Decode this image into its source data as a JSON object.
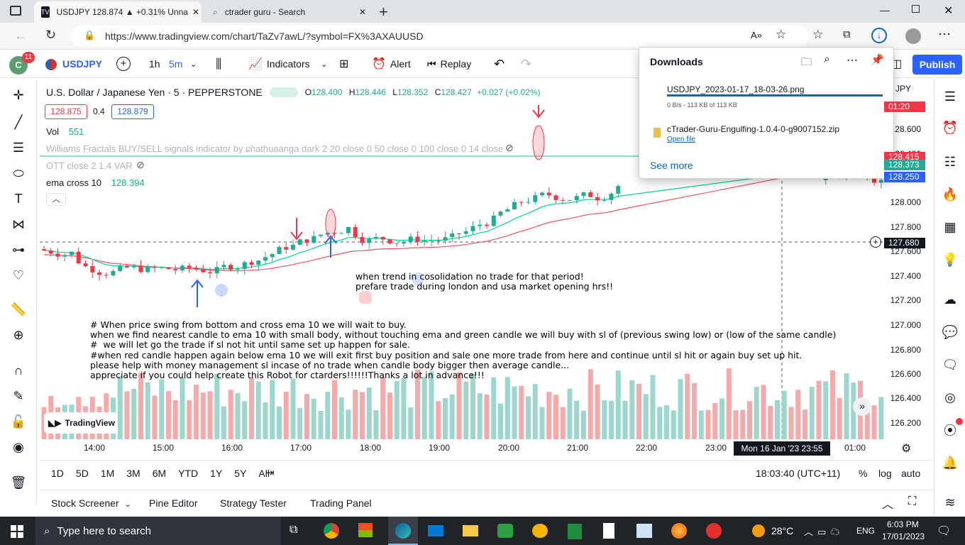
{
  "browser": {
    "tabs": [
      {
        "label": "USDJPY 128.874 ▲ +0.31% Unna"
      },
      {
        "label": "ctrader guru - Search"
      }
    ],
    "url": "https://www.tradingview.com/chart/TaZv7awL/?symbol=FX%3AXAUUSD"
  },
  "toolbar": {
    "notif_count": "11",
    "symbol": "USDJPY",
    "interval_1h": "1h",
    "interval_5m": "5m",
    "indicators": "Indicators",
    "alert": "Alert",
    "replay": "Replay",
    "publish": "Publish"
  },
  "legend": {
    "title": "U.S. Dollar / Japanese Yen · 5 · PEPPERSTONE",
    "o_label": "O",
    "o": "128.400",
    "h_label": "H",
    "h": "128.446",
    "l_label": "L",
    "l": "128.352",
    "c_label": "C",
    "c": "128.427",
    "change": "+0.027 (+0.02%)",
    "bid": "128.875",
    "spread": "0.4",
    "ask": "128.879",
    "vol_label": "Vol",
    "vol": "551",
    "williams": "Williams Fractals BUY/SELL signals indicator by ɕhathuaanga dark 2 20 close 0 50 close 0 100 close 0 14 close",
    "ott": "OTT close 2 1.4 VAR",
    "ema_label": "ema cross 10",
    "ema": "128.394"
  },
  "notes": {
    "trend": "when trend in cosolidation no trade for that period!\nprefare trade during london and usa market opening hrs!!",
    "strategy": "# When price swing from bottom and cross ema 10 we will wait to buy.\nwhen we find nearest candle to ema 10 with small body, without touching ema and green candle we will buy with sl of (previous swing low) or (low of the same candle)\n#  we will let go the trade if sl not hit until same set up happen for sale.\n#when red candle happen again below ema 10 we will exit first buy position and sale one more trade from here and continue until sl hit or again buy set up hit.\nplease help with money management sl incase of no trade when candle body bigger then average candle...\nappreciate if you could help create this Robot for ctarders!!!!!!Thanks a lot in advance!!!"
  },
  "yaxis": {
    "labels": [
      "128.600",
      "128.400",
      "128.000",
      "127.800",
      "127.600",
      "127.400",
      "127.200",
      "127.000",
      "126.800",
      "126.600",
      "126.400",
      "126.200"
    ],
    "boxes": [
      {
        "label": "01:20",
        "color": "#f23645"
      },
      {
        "label": "128.415",
        "color": "#f23645"
      },
      {
        "label": "128.373",
        "color": "#22ab94"
      },
      {
        "label": "128.250",
        "color": "#2962ff"
      },
      {
        "label": "127.680",
        "color": "#131722"
      }
    ],
    "currency": "JPY"
  },
  "xaxis": {
    "labels": [
      "14:00",
      "15:00",
      "16:00",
      "17:00",
      "18:00",
      "19:00",
      "20:00",
      "21:00",
      "22:00",
      "23:00",
      "01:00"
    ],
    "cursor_label": "Mon 16 Jan '23  23:55"
  },
  "ranges": [
    "1D",
    "5D",
    "1M",
    "3M",
    "6M",
    "YTD",
    "1Y",
    "5Y",
    "All"
  ],
  "bottombar": {
    "clock": "18:03:40 (UTC+11)",
    "pct": "%",
    "log": "log",
    "auto": "auto"
  },
  "panels": [
    "Stock Screener",
    "Pine Editor",
    "Strategy Tester",
    "Trading Panel"
  ],
  "downloads": {
    "title": "Downloads",
    "file1": "USDJPY_2023-01-17_18-03-26.png",
    "file1_status": "0 B/s - 113 KB of 113 KB",
    "file2": "cTrader-Guru-Engulfing-1.0.4-0-g9007152.zip",
    "file2_action": "Open file",
    "see_more": "See more"
  },
  "taskbar": {
    "search_placeholder": "Type here to search",
    "temp": "28°C",
    "lang": "ENG",
    "time": "6:03 PM",
    "date": "17/01/2023"
  },
  "watermark": "TradingView",
  "colors": {
    "up": "#22ab94",
    "down": "#f23645",
    "ema": "#00d68f",
    "ott": "#f7525f",
    "accent": "#2962ff"
  }
}
